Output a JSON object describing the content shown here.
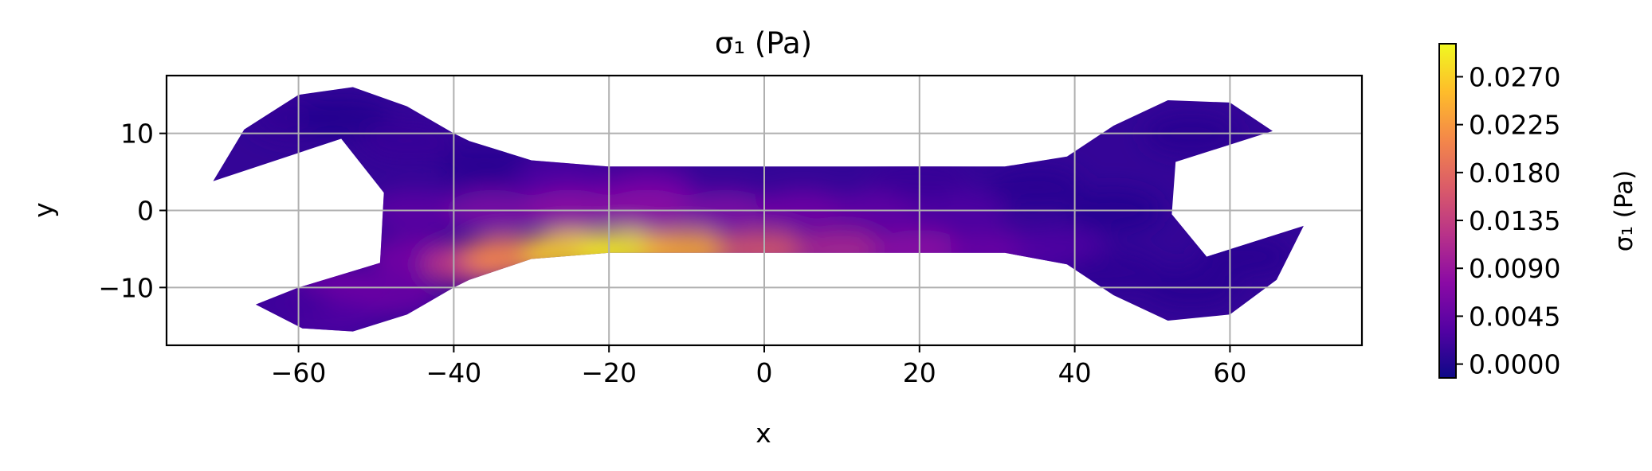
{
  "chart_data": {
    "type": "heatmap",
    "title": "σ₁ (Pa)",
    "xlabel": "x",
    "ylabel": "y",
    "xlim": [
      -77,
      77
    ],
    "ylim": [
      -17.5,
      17.5
    ],
    "x_ticks": [
      {
        "value": -60,
        "label": "−60"
      },
      {
        "value": -40,
        "label": "−40"
      },
      {
        "value": -20,
        "label": "−20"
      },
      {
        "value": 0,
        "label": "0"
      },
      {
        "value": 20,
        "label": "20"
      },
      {
        "value": 40,
        "label": "40"
      },
      {
        "value": 60,
        "label": "60"
      }
    ],
    "y_ticks": [
      {
        "value": 10,
        "label": "10"
      },
      {
        "value": 0,
        "label": "0"
      },
      {
        "value": -10,
        "label": "−10"
      }
    ],
    "grid": true,
    "colormap": "plasma",
    "colors": {
      "cmap_stops": [
        "#0d0887",
        "#5302a3",
        "#8b0aa5",
        "#b83289",
        "#db5c68",
        "#f48849",
        "#febd2a",
        "#f0f921"
      ],
      "grid_color": "#b0b0b0",
      "axes_color": "#000000"
    },
    "colorbar": {
      "label": "σ₁ (Pa)",
      "range": [
        -0.0013,
        0.0301
      ],
      "ticks": [
        {
          "value": 0.0,
          "label": "0.0000"
        },
        {
          "value": 0.0045,
          "label": "0.0045"
        },
        {
          "value": 0.009,
          "label": "0.0090"
        },
        {
          "value": 0.0135,
          "label": "0.0135"
        },
        {
          "value": 0.018,
          "label": "0.0180"
        },
        {
          "value": 0.0225,
          "label": "0.0225"
        },
        {
          "value": 0.027,
          "label": "0.0270"
        }
      ]
    },
    "outline": [
      [
        -71,
        3.8
      ],
      [
        -67,
        10.5
      ],
      [
        -60,
        15
      ],
      [
        -53,
        16
      ],
      [
        -46,
        13.5
      ],
      [
        -40,
        10
      ],
      [
        -38,
        9
      ],
      [
        -30,
        6.5
      ],
      [
        -20,
        5.7
      ],
      [
        31,
        5.7
      ],
      [
        39,
        7
      ],
      [
        45,
        11
      ],
      [
        52,
        14.3
      ],
      [
        60,
        14
      ],
      [
        65.5,
        10.3
      ],
      [
        53,
        6.3
      ],
      [
        52.5,
        -0.5
      ],
      [
        57,
        -6
      ],
      [
        69.5,
        -2
      ],
      [
        66,
        -9
      ],
      [
        60,
        -13.5
      ],
      [
        52,
        -14.3
      ],
      [
        45,
        -11
      ],
      [
        39,
        -7
      ],
      [
        31,
        -5.5
      ],
      [
        -20,
        -5.5
      ],
      [
        -30,
        -6.3
      ],
      [
        -38,
        -9
      ],
      [
        -40,
        -10
      ],
      [
        -46,
        -13.5
      ],
      [
        -53,
        -15.7
      ],
      [
        -59.5,
        -15.3
      ],
      [
        -65.5,
        -12.2
      ],
      [
        -60,
        -10
      ],
      [
        -49.5,
        -6.8
      ],
      [
        -49,
        2.3
      ],
      [
        -54.5,
        9.3
      ],
      [
        -71,
        3.8
      ]
    ],
    "field_samples": [
      {
        "x": -60,
        "y": 12,
        "value": 0.001
      },
      {
        "x": -54,
        "y": 12,
        "value": 0.0
      },
      {
        "x": -46,
        "y": 9,
        "value": 0.0015
      },
      {
        "x": -36,
        "y": 6,
        "value": 0.0005
      },
      {
        "x": -26,
        "y": 4,
        "value": 0.003
      },
      {
        "x": -15,
        "y": 3,
        "value": 0.005
      },
      {
        "x": -45,
        "y": 0,
        "value": 0.004
      },
      {
        "x": -35,
        "y": 0,
        "value": 0.0065
      },
      {
        "x": -25,
        "y": 0,
        "value": 0.008
      },
      {
        "x": -15,
        "y": 0,
        "value": 0.008
      },
      {
        "x": -5,
        "y": 0,
        "value": 0.0065
      },
      {
        "x": 5,
        "y": 0,
        "value": 0.0055
      },
      {
        "x": 15,
        "y": 0,
        "value": 0.0045
      },
      {
        "x": 25,
        "y": 0,
        "value": 0.003
      },
      {
        "x": -45,
        "y": -6,
        "value": 0.006
      },
      {
        "x": -38,
        "y": -7,
        "value": 0.013
      },
      {
        "x": -33,
        "y": -6,
        "value": 0.021
      },
      {
        "x": -25,
        "y": -5.3,
        "value": 0.027
      },
      {
        "x": -18,
        "y": -5.2,
        "value": 0.029
      },
      {
        "x": -10,
        "y": -5.2,
        "value": 0.024
      },
      {
        "x": 0,
        "y": -5.2,
        "value": 0.016
      },
      {
        "x": 10,
        "y": -5.2,
        "value": 0.011
      },
      {
        "x": 20,
        "y": -5.2,
        "value": 0.008
      },
      {
        "x": 30,
        "y": -5.2,
        "value": 0.005
      },
      {
        "x": 38,
        "y": -5,
        "value": 0.003
      },
      {
        "x": -55,
        "y": -10,
        "value": 0.0055
      },
      {
        "x": -48,
        "y": -11,
        "value": 0.005
      },
      {
        "x": -56,
        "y": -14,
        "value": 0.003
      },
      {
        "x": -62,
        "y": -12,
        "value": 0.002
      },
      {
        "x": 20,
        "y": 4,
        "value": 0.0015
      },
      {
        "x": 35,
        "y": 3,
        "value": 0.0005
      },
      {
        "x": 45,
        "y": 0,
        "value": 0.0003
      },
      {
        "x": 55,
        "y": 10,
        "value": 0.0004
      },
      {
        "x": 55,
        "y": -10,
        "value": 0.0004
      },
      {
        "x": 62,
        "y": -6,
        "value": 0.0005
      },
      {
        "x": 45,
        "y": -8,
        "value": 0.0008
      }
    ]
  }
}
